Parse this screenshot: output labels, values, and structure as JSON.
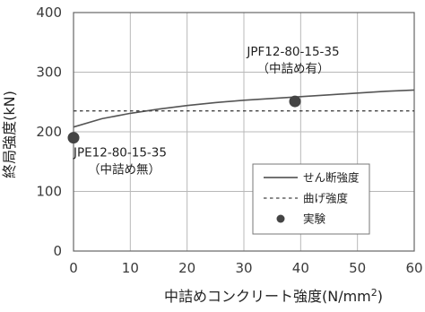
{
  "chart_data": {
    "type": "line",
    "xlabel": "中詰めコンクリート強度(N/mm",
    "xlabel_sup": "2",
    "xlabel_close": ")",
    "ylabel": "終局強度(kN)",
    "xlim": [
      0,
      60
    ],
    "ylim": [
      0,
      400
    ],
    "xticks": [
      0,
      10,
      20,
      30,
      40,
      50,
      60
    ],
    "yticks": [
      0,
      100,
      200,
      300,
      400
    ],
    "grid": true,
    "legend_position": "bottom-right",
    "series": [
      {
        "name": "せん断強度",
        "type": "line",
        "style": "solid",
        "x": [
          0,
          5,
          10,
          15,
          20,
          25,
          30,
          35,
          40,
          45,
          50,
          55,
          60
        ],
        "y": [
          208,
          222,
          231,
          238,
          244,
          249,
          253,
          256,
          259,
          262,
          265,
          268,
          270
        ]
      },
      {
        "name": "曲げ強度",
        "type": "line",
        "style": "dashed",
        "x": [
          0,
          60
        ],
        "y": [
          235,
          235
        ]
      },
      {
        "name": "実験",
        "type": "scatter",
        "x": [
          0,
          39
        ],
        "y": [
          190,
          251
        ]
      }
    ],
    "annotations": [
      {
        "id": "jpe",
        "lines": [
          "JPE12-80-15-35",
          "（中詰め無）"
        ]
      },
      {
        "id": "jpf",
        "lines": [
          "JPF12-80-15-35",
          "（中詰め有）"
        ]
      }
    ]
  }
}
